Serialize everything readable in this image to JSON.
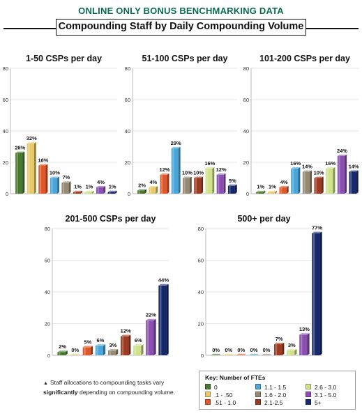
{
  "header": "ONLINE ONLY BONUS BENCHMARKING DATA",
  "title": "Compounding Staff by Daily Compounding Volume",
  "series_colors": [
    "#4a7a2f",
    "#e8c96a",
    "#e0572a",
    "#4aa6d8",
    "#958a73",
    "#9d3b22",
    "#cfe18a",
    "#8a4fb0",
    "#162a6b"
  ],
  "chart_data": [
    {
      "type": "bar",
      "title": "1-50 CSPs per day",
      "categories": [
        "0",
        ".1 - .50",
        ".51 - 1.0",
        "1.1 - 1.5",
        "1.6 - 2.0",
        "2.1-2.5",
        "2.6 - 3.0",
        "3.1 - 5.0",
        "5+"
      ],
      "values": [
        26,
        32,
        18,
        10,
        7,
        1,
        1,
        4,
        1
      ],
      "labels": [
        "26%",
        "32%",
        "18%",
        "10%",
        "7%",
        "1%",
        "1%",
        "4%",
        "1%"
      ],
      "ylim": [
        0,
        80
      ],
      "yticks": [
        0,
        20,
        40,
        60,
        80
      ]
    },
    {
      "type": "bar",
      "title": "51-100 CSPs per day",
      "categories": [
        "0",
        ".1 - .50",
        ".51 - 1.0",
        "1.1 - 1.5",
        "1.6 - 2.0",
        "2.1-2.5",
        "2.6 - 3.0",
        "3.1 - 5.0",
        "5+"
      ],
      "values": [
        2,
        4,
        12,
        29,
        10,
        10,
        16,
        12,
        5
      ],
      "labels": [
        "2%",
        "4%",
        "12%",
        "29%",
        "10%",
        "10%",
        "16%",
        "12%",
        "5%"
      ],
      "ylim": [
        0,
        80
      ],
      "yticks": [
        0,
        20,
        40,
        60,
        80
      ]
    },
    {
      "type": "bar",
      "title": "101-200 CSPs per day",
      "categories": [
        "0",
        ".1 - .50",
        ".51 - 1.0",
        "1.1 - 1.5",
        "1.6 - 2.0",
        "2.1-2.5",
        "2.6 - 3.0",
        "3.1 - 5.0",
        "5+"
      ],
      "values": [
        1,
        1,
        4,
        16,
        14,
        10,
        16,
        24,
        14
      ],
      "labels": [
        "1%",
        "1%",
        "4%",
        "16%",
        "14%",
        "10%",
        "16%",
        "24%",
        "14%"
      ],
      "ylim": [
        0,
        80
      ],
      "yticks": [
        0,
        20,
        40,
        60,
        80
      ]
    },
    {
      "type": "bar",
      "title": "201-500 CSPs per day",
      "categories": [
        "0",
        ".1 - .50",
        ".51 - 1.0",
        "1.1 - 1.5",
        "1.6 - 2.0",
        "2.1-2.5",
        "2.6 - 3.0",
        "3.1 - 5.0",
        "5+"
      ],
      "values": [
        2,
        0,
        5,
        6,
        3,
        12,
        6,
        22,
        44
      ],
      "labels": [
        "2%",
        "0%",
        "5%",
        "6%",
        "3%",
        "12%",
        "6%",
        "22%",
        "44%"
      ],
      "ylim": [
        0,
        80
      ],
      "yticks": [
        0,
        20,
        40,
        60,
        80
      ]
    },
    {
      "type": "bar",
      "title": "500+ per day",
      "categories": [
        "0",
        ".1 - .50",
        ".51 - 1.0",
        "1.1 - 1.5",
        "1.6 - 2.0",
        "2.1-2.5",
        "2.6 - 3.0",
        "3.1 - 5.0",
        "5+"
      ],
      "values": [
        0,
        0,
        0,
        0,
        0,
        7,
        3,
        13,
        77
      ],
      "labels": [
        "0%",
        "0%",
        "0%",
        "0%",
        "0%",
        "7%",
        "3%",
        "13%",
        "77%"
      ],
      "ylim": [
        0,
        80
      ],
      "yticks": [
        0,
        20,
        40,
        60,
        80
      ]
    }
  ],
  "note": {
    "prefix": "Staff allocations to compounding tasks vary",
    "bold": "significantly",
    "suffix": "depending on compounding volume."
  },
  "key": {
    "title": "Key: Number of FTEs",
    "items": [
      "0",
      ".1 - .50",
      ".51 - 1.0",
      "1.1 - 1.5",
      "1.6 - 2.0",
      "2.1-2.5",
      "2.6 - 3.0",
      "3.1 - 5.0",
      "5+"
    ]
  }
}
